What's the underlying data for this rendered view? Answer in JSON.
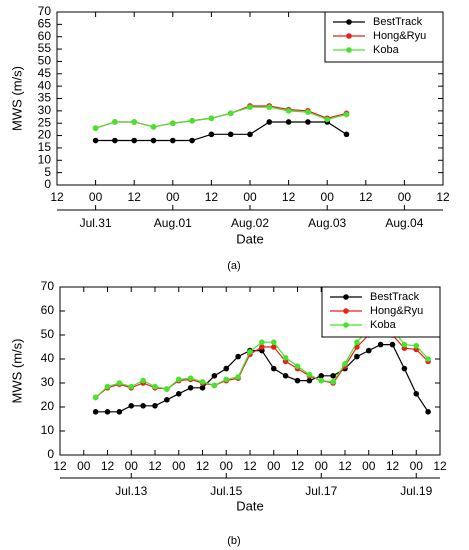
{
  "chart_data": [
    {
      "type": "line",
      "ylabel": "MWS (m/s)",
      "xlabel": "Date",
      "legend": "upper right",
      "xlim": [
        -12,
        108
      ],
      "ylim": [
        0,
        70
      ],
      "yticks": [
        0,
        5,
        10,
        15,
        20,
        25,
        30,
        35,
        40,
        45,
        50,
        55,
        60,
        65,
        70
      ],
      "xticks": [
        {
          "value": -12,
          "label": "12"
        },
        {
          "value": 0,
          "label": "00"
        },
        {
          "value": 12,
          "label": "12"
        },
        {
          "value": 24,
          "label": "00"
        },
        {
          "value": 36,
          "label": "12"
        },
        {
          "value": 48,
          "label": "00"
        },
        {
          "value": 60,
          "label": "12"
        },
        {
          "value": 72,
          "label": "00"
        },
        {
          "value": 84,
          "label": "12"
        },
        {
          "value": 96,
          "label": "00"
        },
        {
          "value": 108,
          "label": "12"
        }
      ],
      "date_ticks": [
        {
          "value": 0,
          "label": "Jul.31"
        },
        {
          "value": 24,
          "label": "Aug.01"
        },
        {
          "value": 48,
          "label": "Aug.02"
        },
        {
          "value": 72,
          "label": "Aug.03"
        },
        {
          "value": 96,
          "label": "Aug.04"
        }
      ],
      "x": [
        0,
        6,
        12,
        18,
        24,
        30,
        36,
        42,
        48,
        54,
        60,
        66,
        72,
        78
      ],
      "series": [
        {
          "name": "BestTrack",
          "color": "#000000",
          "values": [
            18,
            18,
            18,
            18,
            18,
            18,
            20.5,
            20.5,
            20.5,
            25.5,
            25.5,
            25.5,
            25.5,
            20.5
          ]
        },
        {
          "name": "Hong&Ryu",
          "color": "#e8201a",
          "values": [
            23,
            25.5,
            25.5,
            23.5,
            25,
            26,
            27,
            29,
            32,
            32,
            30.5,
            30,
            27,
            29
          ]
        },
        {
          "name": "Koba",
          "color": "#44e62c",
          "values": [
            23,
            25.5,
            25.5,
            23.5,
            25,
            26,
            27,
            29,
            31.5,
            31.5,
            30,
            29.5,
            26.5,
            28.5
          ]
        }
      ]
    },
    {
      "type": "line",
      "ylabel": "MWS (m/s)",
      "xlabel": "Date",
      "legend": "upper right",
      "xlim": [
        -36,
        156
      ],
      "ylim": [
        0,
        70
      ],
      "yticks": [
        0,
        10,
        20,
        30,
        40,
        50,
        60,
        70
      ],
      "xticks": [
        {
          "value": -36,
          "label": "12"
        },
        {
          "value": -24,
          "label": "00"
        },
        {
          "value": -12,
          "label": "12"
        },
        {
          "value": 0,
          "label": "00"
        },
        {
          "value": 12,
          "label": "12"
        },
        {
          "value": 24,
          "label": "00"
        },
        {
          "value": 36,
          "label": "12"
        },
        {
          "value": 48,
          "label": "00"
        },
        {
          "value": 60,
          "label": "12"
        },
        {
          "value": 72,
          "label": "00"
        },
        {
          "value": 84,
          "label": "12"
        },
        {
          "value": 96,
          "label": "00"
        },
        {
          "value": 108,
          "label": "12"
        },
        {
          "value": 120,
          "label": "00"
        },
        {
          "value": 132,
          "label": "12"
        },
        {
          "value": 144,
          "label": "00"
        },
        {
          "value": 156,
          "label": "12"
        }
      ],
      "date_ticks": [
        {
          "value": 0,
          "label": "Jul.13"
        },
        {
          "value": 48,
          "label": "Jul.15"
        },
        {
          "value": 96,
          "label": "Jul.17"
        },
        {
          "value": 144,
          "label": "Jul.19"
        }
      ],
      "x": [
        -18,
        -12,
        -6,
        0,
        6,
        12,
        18,
        24,
        30,
        36,
        42,
        48,
        54,
        60,
        66,
        72,
        78,
        84,
        90,
        96,
        102,
        108,
        114,
        120,
        126,
        132,
        138,
        144,
        150
      ],
      "series": [
        {
          "name": "BestTrack",
          "color": "#000000",
          "values": [
            18,
            18,
            18,
            20.5,
            20.5,
            20.5,
            23,
            25.5,
            28,
            28,
            33,
            36,
            41,
            43.5,
            43.5,
            36,
            33,
            31,
            31,
            33,
            33,
            36,
            41,
            43.5,
            46,
            46,
            36,
            25.5,
            18
          ]
        },
        {
          "name": "Hong&Ryu",
          "color": "#e8201a",
          "values": [
            24,
            28,
            29.5,
            28,
            30,
            28,
            27.5,
            31,
            31.5,
            30,
            29,
            31,
            32,
            42,
            45,
            45,
            39,
            36,
            33,
            31,
            30,
            37,
            45,
            50,
            51,
            50,
            44.5,
            44,
            39
          ]
        },
        {
          "name": "Koba",
          "color": "#44e62c",
          "values": [
            24,
            28.5,
            30,
            28.5,
            31,
            28.5,
            27.5,
            31.5,
            32,
            30.5,
            29,
            31.5,
            32.5,
            43,
            47,
            47,
            40.5,
            37,
            33.5,
            31,
            30.5,
            38,
            47,
            52.5,
            53,
            52.5,
            46,
            45.5,
            40
          ]
        }
      ]
    }
  ],
  "captions": [
    "(a)",
    "(b)"
  ]
}
